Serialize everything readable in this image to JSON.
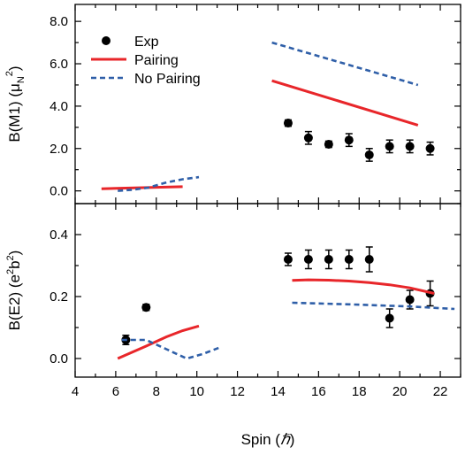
{
  "chart_data": [
    {
      "type": "scatter",
      "panel": "top",
      "ylabel": "B(M1) (μN2)",
      "ylabel_parts": {
        "main": "B(M1) (μ",
        "sub": "N",
        "sup": "2",
        "close": ")"
      },
      "xlim": [
        4,
        23
      ],
      "ylim": [
        -0.6,
        8.8
      ],
      "y_ticks": [
        0.0,
        2.0,
        4.0,
        6.0,
        8.0
      ],
      "y_tick_labels": [
        "0.0",
        "2.0",
        "4.0",
        "6.0",
        "8.0"
      ],
      "legend": {
        "placement": "top-left",
        "entries": [
          {
            "label": "Exp",
            "style": "marker",
            "color": "#000000"
          },
          {
            "label": "Pairing",
            "style": "solid",
            "color": "#e8262a"
          },
          {
            "label": "No Pairing",
            "style": "dashed",
            "color": "#2f5fa8"
          }
        ]
      },
      "series": [
        {
          "name": "Exp",
          "style": "marker",
          "color": "#000000",
          "points": [
            {
              "x": 14.5,
              "y": 3.2,
              "err": 0.15
            },
            {
              "x": 15.5,
              "y": 2.5,
              "err": 0.3
            },
            {
              "x": 16.5,
              "y": 2.2,
              "err": 0.15
            },
            {
              "x": 17.5,
              "y": 2.4,
              "err": 0.3
            },
            {
              "x": 18.5,
              "y": 1.7,
              "err": 0.3
            },
            {
              "x": 19.5,
              "y": 2.1,
              "err": 0.3
            },
            {
              "x": 20.5,
              "y": 2.1,
              "err": 0.3
            },
            {
              "x": 21.5,
              "y": 2.0,
              "err": 0.3
            }
          ]
        },
        {
          "name": "Pairing",
          "style": "solid",
          "color": "#e8262a",
          "segments": [
            [
              [
                5.3,
                0.1
              ],
              [
                9.3,
                0.2
              ]
            ],
            [
              [
                13.7,
                5.2
              ],
              [
                20.9,
                3.1
              ]
            ]
          ]
        },
        {
          "name": "No Pairing",
          "style": "dashed",
          "color": "#2f5fa8",
          "segments": [
            [
              [
                6.1,
                0.0
              ],
              [
                6.8,
                0.05
              ],
              [
                7.6,
                0.15
              ],
              [
                8.5,
                0.4
              ],
              [
                9.3,
                0.55
              ],
              [
                10.1,
                0.65
              ]
            ],
            [
              [
                13.7,
                7.0
              ],
              [
                20.9,
                5.0
              ]
            ]
          ]
        }
      ]
    },
    {
      "type": "scatter",
      "panel": "bottom",
      "xlabel": "Spin (ℏ)",
      "xlabel_parts": {
        "main": "Spin (",
        "italic": "ℏ",
        "close": ")"
      },
      "ylabel": "B(E2) (e2b2)",
      "ylabel_parts": {
        "main": "B(E2) (e",
        "sup1": "2",
        "mid": "b",
        "sup2": "2",
        "close": ")"
      },
      "xlim": [
        4,
        23
      ],
      "ylim": [
        -0.06,
        0.5
      ],
      "x_ticks": [
        4,
        6,
        8,
        10,
        12,
        14,
        16,
        18,
        20,
        22
      ],
      "x_tick_labels": [
        "4",
        "6",
        "8",
        "10",
        "12",
        "14",
        "16",
        "18",
        "20",
        "22"
      ],
      "y_ticks": [
        0.0,
        0.2,
        0.4
      ],
      "y_tick_labels": [
        "0.0",
        "0.2",
        "0.4"
      ],
      "series": [
        {
          "name": "Exp",
          "style": "marker",
          "color": "#000000",
          "points": [
            {
              "x": 6.5,
              "y": 0.06,
              "err": 0.015
            },
            {
              "x": 7.5,
              "y": 0.165,
              "err": 0.01
            },
            {
              "x": 14.5,
              "y": 0.32,
              "err": 0.02
            },
            {
              "x": 15.5,
              "y": 0.32,
              "err": 0.03
            },
            {
              "x": 16.5,
              "y": 0.32,
              "err": 0.03
            },
            {
              "x": 17.5,
              "y": 0.32,
              "err": 0.03
            },
            {
              "x": 18.5,
              "y": 0.32,
              "err": 0.04
            },
            {
              "x": 19.5,
              "y": 0.13,
              "err": 0.03
            },
            {
              "x": 20.5,
              "y": 0.19,
              "err": 0.03
            },
            {
              "x": 21.5,
              "y": 0.21,
              "err": 0.04
            }
          ]
        },
        {
          "name": "Pairing",
          "style": "solid",
          "color": "#e8262a",
          "segments": [
            [
              [
                6.1,
                0.0
              ],
              [
                7.5,
                0.04
              ],
              [
                8.5,
                0.07
              ],
              [
                9.3,
                0.09
              ],
              [
                10.1,
                0.105
              ]
            ],
            [
              [
                14.7,
                0.252
              ],
              [
                15.5,
                0.254
              ],
              [
                16.5,
                0.253
              ],
              [
                17.5,
                0.25
              ],
              [
                18.5,
                0.245
              ],
              [
                19.5,
                0.238
              ],
              [
                20.5,
                0.228
              ],
              [
                21.7,
                0.21
              ]
            ]
          ]
        },
        {
          "name": "No Pairing",
          "style": "dashed",
          "color": "#2f5fa8",
          "segments": [
            [
              [
                6.3,
                0.06
              ],
              [
                7.5,
                0.06
              ],
              [
                8.5,
                0.03
              ],
              [
                9.5,
                0.0
              ],
              [
                10.3,
                0.015
              ],
              [
                11.1,
                0.035
              ]
            ],
            [
              [
                14.7,
                0.18
              ],
              [
                17.5,
                0.175
              ],
              [
                20.5,
                0.168
              ],
              [
                22.7,
                0.16
              ]
            ]
          ]
        }
      ]
    }
  ]
}
